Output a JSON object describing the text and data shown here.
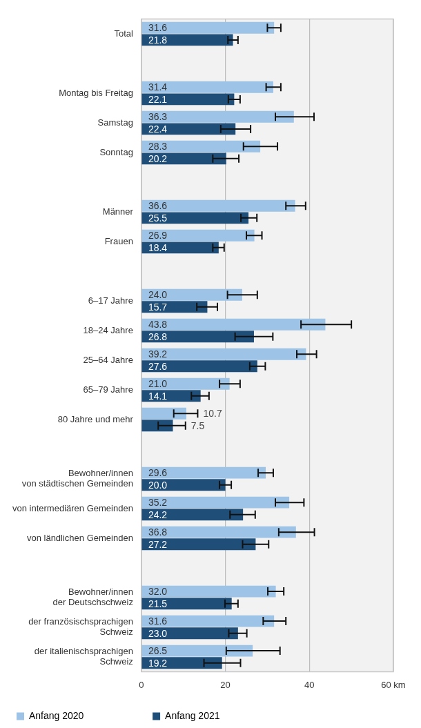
{
  "chart_data": {
    "type": "bar",
    "orientation": "horizontal",
    "categories": [
      "Total",
      null,
      "Montag bis Freitag",
      "Samstag",
      "Sonntag",
      null,
      "Männer",
      "Frauen",
      null,
      "6–17 Jahre",
      "18–24 Jahre",
      "25–64 Jahre",
      "65–79 Jahre",
      "80 Jahre und mehr",
      null,
      "Bewohner/innen\nvon städtischen Gemeinden",
      "von intermediären Gemeinden",
      "von ländlichen Gemeinden",
      null,
      "Bewohner/innen\nder Deutschschweiz",
      "der französischsprachigen\nSchweiz",
      "der italienischsprachigen\nSchweiz"
    ],
    "series": [
      {
        "name": "Anfang 2020",
        "color": "#9dc3e6",
        "values": [
          31.6,
          null,
          31.4,
          36.3,
          28.3,
          null,
          36.6,
          26.9,
          null,
          24.0,
          43.8,
          39.2,
          21.0,
          10.7,
          null,
          29.6,
          35.2,
          36.8,
          null,
          32.0,
          31.6,
          26.5
        ],
        "value_labels": [
          "31.6",
          null,
          "31.4",
          "36.3",
          "28.3",
          null,
          "36.6",
          "26.9",
          null,
          "24.0",
          "43.8",
          "39.2",
          "21.0",
          "10.7",
          null,
          "29.6",
          "35.2",
          "36.8",
          null,
          "32.0",
          "31.6",
          "26.5"
        ],
        "errors": [
          [
            30.0,
            33.2
          ],
          null,
          [
            29.7,
            33.2
          ],
          [
            31.9,
            41.1
          ],
          [
            24.3,
            32.4
          ],
          null,
          [
            34.4,
            39.1
          ],
          [
            25.0,
            28.7
          ],
          null,
          [
            20.5,
            27.6
          ],
          [
            38.0,
            50.0
          ],
          [
            37.0,
            41.7
          ],
          [
            18.6,
            23.5
          ],
          [
            7.7,
            13.4
          ],
          null,
          [
            27.8,
            31.4
          ],
          [
            31.9,
            38.7
          ],
          [
            32.7,
            41.2
          ],
          null,
          [
            30.1,
            33.9
          ],
          [
            29.0,
            34.4
          ],
          [
            20.2,
            33.0
          ]
        ]
      },
      {
        "name": "Anfang 2021",
        "color": "#1f4e79",
        "values": [
          21.8,
          null,
          22.1,
          22.4,
          20.2,
          null,
          25.5,
          18.4,
          null,
          15.7,
          26.8,
          27.6,
          14.1,
          7.5,
          null,
          20.0,
          24.2,
          27.2,
          null,
          21.5,
          23.0,
          19.2
        ],
        "value_labels": [
          "21.8",
          null,
          "22.1",
          "22.4",
          "20.2",
          null,
          "25.5",
          "18.4",
          null,
          "15.7",
          "26.8",
          "27.6",
          "14.1",
          "7.5",
          null,
          "20.0",
          "24.2",
          "27.2",
          null,
          "21.5",
          "23.0",
          "19.2"
        ],
        "errors": [
          [
            20.6,
            23.0
          ],
          null,
          [
            20.7,
            23.5
          ],
          [
            18.9,
            26.0
          ],
          [
            17.0,
            23.2
          ],
          null,
          [
            23.7,
            27.5
          ],
          [
            17.0,
            19.7
          ],
          null,
          [
            13.2,
            18.1
          ],
          [
            22.3,
            31.3
          ],
          [
            25.8,
            29.5
          ],
          [
            11.9,
            16.1
          ],
          [
            4.0,
            10.5
          ],
          null,
          [
            18.6,
            21.4
          ],
          [
            21.1,
            27.1
          ],
          [
            24.1,
            30.3
          ],
          null,
          [
            19.9,
            23.0
          ],
          [
            20.8,
            25.1
          ],
          [
            14.9,
            23.6
          ]
        ]
      }
    ],
    "xlim": [
      0,
      60
    ],
    "xticks": [
      0,
      20,
      40,
      {
        "value": 60,
        "label": "60 km"
      }
    ],
    "grid": "x",
    "legend": "bottom left"
  }
}
